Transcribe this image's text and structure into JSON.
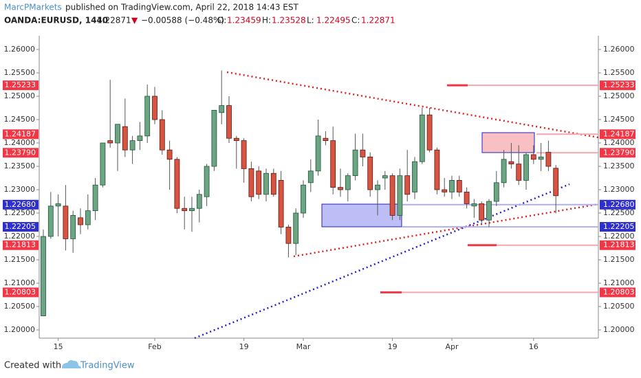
{
  "header": {
    "author": "MarcPMarkets",
    "published": "published on TradingView.com, April 22, 2018 14:43 EST",
    "symbol": "OANDA:EURUSD, 1440",
    "last": 1.22871,
    "arrow": "▼",
    "change": "−0.00588 (−0.48%)",
    "ohlc": [
      {
        "label": "O:",
        "value": 1.23459
      },
      {
        "label": "H:",
        "value": 1.23528
      },
      {
        "label": "L:",
        "value": 1.22495
      },
      {
        "label": "C:",
        "value": 1.22871
      }
    ]
  },
  "footer": {
    "created": "Created with",
    "brand": "TradingView"
  },
  "chart_data": {
    "type": "candlestick",
    "categories": [
      null,
      null,
      "15",
      null,
      null,
      null,
      null,
      null,
      null,
      null,
      null,
      null,
      null,
      null,
      null,
      "Feb",
      null,
      null,
      null,
      null,
      null,
      null,
      null,
      null,
      null,
      null,
      null,
      "19",
      null,
      null,
      null,
      null,
      null,
      null,
      null,
      "Mar",
      null,
      null,
      null,
      null,
      null,
      null,
      null,
      null,
      null,
      null,
      null,
      "19",
      null,
      null,
      null,
      null,
      null,
      null,
      null,
      "Apr",
      null,
      null,
      null,
      null,
      null,
      null,
      null,
      null,
      null,
      null,
      "16",
      null,
      null,
      null
    ],
    "open": [
      1.203,
      1.22,
      1.2265,
      1.2265,
      1.2195,
      1.224,
      1.2225,
      1.2255,
      1.231,
      1.2405,
      1.24,
      1.2435,
      1.2385,
      1.2405,
      1.2415,
      1.25,
      1.245,
      1.2385,
      1.2365,
      1.226,
      1.2255,
      1.226,
      1.2285,
      1.235,
      1.2465,
      1.248,
      1.241,
      1.2405,
      1.2345,
      1.234,
      1.229,
      1.2335,
      1.232,
      1.222,
      1.2185,
      1.225,
      1.2315,
      1.234,
      1.241,
      1.2405,
      1.2305,
      1.23,
      1.233,
      1.2385,
      1.237,
      1.23,
      1.2325,
      1.233,
      1.2245,
      1.233,
      1.2295,
      1.236,
      1.246,
      1.2385,
      1.23,
      1.2295,
      1.232,
      1.2295,
      1.2265,
      1.227,
      1.2235,
      1.2275,
      1.2315,
      1.236,
      1.2355,
      1.232,
      1.2375,
      1.2365,
      1.238,
      1.23459
    ],
    "high": [
      1.2215,
      1.2295,
      1.229,
      1.231,
      1.2255,
      1.226,
      1.229,
      1.2325,
      1.24,
      1.2535,
      1.244,
      1.2495,
      1.2415,
      1.2445,
      1.2525,
      1.252,
      1.247,
      1.2405,
      1.237,
      1.2285,
      1.2285,
      1.23,
      1.2355,
      1.247,
      1.2555,
      1.25,
      1.2415,
      1.241,
      1.236,
      1.235,
      1.2345,
      1.2345,
      1.234,
      1.2225,
      1.226,
      1.232,
      1.2365,
      1.245,
      1.2425,
      1.2435,
      1.2345,
      1.2335,
      1.242,
      1.242,
      1.238,
      1.232,
      1.234,
      1.2335,
      1.2345,
      1.2385,
      1.237,
      1.2475,
      1.2475,
      1.239,
      1.2325,
      1.233,
      1.233,
      1.2305,
      1.228,
      1.2275,
      1.228,
      1.234,
      1.2385,
      1.24,
      1.2395,
      1.238,
      1.2395,
      1.24,
      1.2405,
      1.23528
    ],
    "low": [
      1.203,
      1.2195,
      1.22,
      1.217,
      1.2165,
      1.2205,
      1.2215,
      1.2235,
      1.2305,
      1.239,
      1.234,
      1.237,
      1.2355,
      1.2385,
      1.24,
      1.244,
      1.2375,
      1.23,
      1.225,
      1.2215,
      1.221,
      1.223,
      1.2265,
      1.234,
      1.244,
      1.24,
      1.2345,
      1.2315,
      1.2275,
      1.228,
      1.2275,
      1.2285,
      1.2205,
      1.2155,
      1.216,
      1.224,
      1.2295,
      1.233,
      1.2395,
      1.229,
      1.2285,
      1.2275,
      1.232,
      1.235,
      1.2285,
      1.2245,
      1.23,
      1.2235,
      1.2235,
      1.2275,
      1.228,
      1.2355,
      1.238,
      1.229,
      1.2285,
      1.228,
      1.2285,
      1.226,
      1.224,
      1.2225,
      1.222,
      1.2265,
      1.2305,
      1.2345,
      1.231,
      1.23,
      1.2355,
      1.234,
      1.234,
      1.22495
    ],
    "close": [
      1.22,
      1.2265,
      1.227,
      1.2195,
      1.2245,
      1.2225,
      1.2255,
      1.231,
      1.24,
      1.24,
      1.244,
      1.2385,
      1.2405,
      1.2415,
      1.25,
      1.245,
      1.2385,
      1.2365,
      1.226,
      1.2255,
      1.226,
      1.229,
      1.235,
      1.247,
      1.248,
      1.241,
      1.2405,
      1.2345,
      1.2285,
      1.229,
      1.2335,
      1.229,
      1.222,
      1.2185,
      1.225,
      1.231,
      1.234,
      1.2415,
      1.2405,
      1.2305,
      1.23,
      1.233,
      1.2385,
      1.237,
      1.23,
      1.231,
      1.233,
      1.2245,
      1.233,
      1.229,
      1.236,
      1.246,
      1.2385,
      1.23,
      1.2295,
      1.232,
      1.2295,
      1.227,
      1.227,
      1.2235,
      1.2275,
      1.2315,
      1.2365,
      1.2355,
      1.232,
      1.2375,
      1.2365,
      1.237,
      1.235,
      1.22871
    ],
    "up_color": "#6ba583",
    "down_color": "#d75442",
    "ylim": [
      1.19824,
      1.26294
    ],
    "yticks": [
      {
        "value": 1.2,
        "label": "1.20000"
      },
      {
        "value": 1.205,
        "label": "1.20500"
      },
      {
        "value": 1.21,
        "label": "1.21000"
      },
      {
        "value": 1.215,
        "label": "1.21500"
      },
      {
        "value": 1.22,
        "label": "1.22000"
      },
      {
        "value": 1.225,
        "label": "1.22500"
      },
      {
        "value": 1.23,
        "label": "1.23000"
      },
      {
        "value": 1.235,
        "label": "1.23500"
      },
      {
        "value": 1.24,
        "label": "1.24000"
      },
      {
        "value": 1.245,
        "label": "1.24500"
      },
      {
        "value": 1.25,
        "label": "1.25000"
      },
      {
        "value": 1.255,
        "label": "1.25500"
      },
      {
        "value": 1.26,
        "label": "1.26000"
      }
    ],
    "levels": [
      {
        "value": 1.25233,
        "color": "#f23645"
      },
      {
        "value": 1.24187,
        "color": "#f23645"
      },
      {
        "value": {
          "value": 1.2379,
          "label": "1.23790"
        },
        "color": "#f23645"
      },
      {
        "value": {
          "value": 1.2268,
          "label": "1.22680"
        },
        "color": "#2f2fd0"
      },
      {
        "value": 1.22205,
        "color": "#2f2fd0"
      },
      {
        "value": 1.21813,
        "color": "#f23645"
      },
      {
        "value": 1.20803,
        "color": "#f23645"
      }
    ],
    "grid": false
  }
}
